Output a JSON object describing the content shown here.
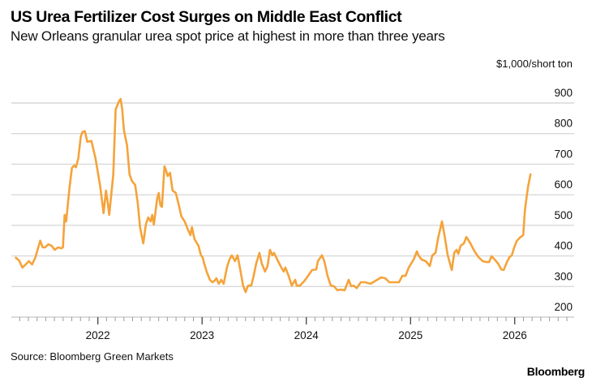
{
  "header": {
    "title": "US Urea Fertilizer Cost Surges on Middle East Conflict",
    "subtitle": "New Orleans granular urea spot price at highest in more than three years",
    "unit": "$1,000/short ton"
  },
  "footer": {
    "source": "Source: Bloomberg Green Markets",
    "brand": "Bloomberg"
  },
  "colors": {
    "line": "#f5a33a",
    "grid": "#d9d9d9"
  },
  "chart_data": {
    "type": "line",
    "title": "US Urea Fertilizer Cost Surges on Middle East Conflict",
    "subtitle": "New Orleans granular urea spot price at highest in more than three years",
    "xlabel": "",
    "ylabel": "$1,000/short ton",
    "y_axis_side": "right",
    "ylim": [
      200,
      900
    ],
    "xlim": [
      2021.17,
      2026.57
    ],
    "yticks": [
      200,
      300,
      400,
      500,
      600,
      700,
      800,
      900
    ],
    "xticks": [
      {
        "value": 2022,
        "label": "2022"
      },
      {
        "value": 2023,
        "label": "2023"
      },
      {
        "value": 2024,
        "label": "2024"
      },
      {
        "value": 2025,
        "label": "2025"
      },
      {
        "value": 2026,
        "label": "2026"
      }
    ],
    "minor_ticks": "monthly",
    "grid": true,
    "legend": "none",
    "series": [
      {
        "name": "New Orleans granular urea spot price",
        "x": [
          2021.213,
          2021.245,
          2021.276,
          2021.307,
          2021.338,
          2021.369,
          2021.4,
          2021.447,
          2021.47,
          2021.494,
          2021.525,
          2021.556,
          2021.587,
          2021.618,
          2021.65,
          2021.665,
          2021.681,
          2021.696,
          2021.727,
          2021.751,
          2021.774,
          2021.79,
          2021.813,
          2021.836,
          2021.852,
          2021.875,
          2021.899,
          2021.938,
          2021.977,
          2022.023,
          2022.055,
          2022.078,
          2022.093,
          2022.109,
          2022.148,
          2022.171,
          2022.202,
          2022.218,
          2022.234,
          2022.249,
          2022.28,
          2022.304,
          2022.327,
          2022.358,
          2022.382,
          2022.405,
          2022.436,
          2022.46,
          2022.483,
          2022.506,
          2022.522,
          2022.537,
          2022.569,
          2022.584,
          2022.6,
          2022.615,
          2022.639,
          2022.654,
          2022.67,
          2022.693,
          2022.717,
          2022.748,
          2022.771,
          2022.802,
          2022.833,
          2022.864,
          2022.888,
          2022.903,
          2022.927,
          2022.966,
          2022.989,
          2023.005,
          2023.02,
          2023.044,
          2023.075,
          2023.098,
          2023.121,
          2023.137,
          2023.16,
          2023.184,
          2023.207,
          2023.238,
          2023.262,
          2023.285,
          2023.316,
          2023.34,
          2023.363,
          2023.394,
          2023.417,
          2023.441,
          2023.472,
          2023.495,
          2023.519,
          2023.55,
          2023.573,
          2023.604,
          2023.628,
          2023.651,
          2023.674,
          2023.69,
          2023.729,
          2023.76,
          2023.783,
          2023.799,
          2023.83,
          2023.861,
          2023.893,
          2023.908,
          2023.939,
          2023.978,
          2024.017,
          2024.056,
          2024.095,
          2024.111,
          2024.15,
          2024.173,
          2024.204,
          2024.235,
          2024.266,
          2024.298,
          2024.329,
          2024.368,
          2024.407,
          2024.43,
          2024.453,
          2024.484,
          2024.523,
          2024.562,
          2024.617,
          2024.656,
          2024.718,
          2024.757,
          2024.796,
          2024.85,
          2024.889,
          2024.921,
          2024.952,
          2024.983,
          2025.006,
          2025.03,
          2025.061,
          2025.076,
          2025.107,
          2025.146,
          2025.185,
          2025.209,
          2025.24,
          2025.263,
          2025.302,
          2025.326,
          2025.357,
          2025.396,
          2025.419,
          2025.442,
          2025.458,
          2025.481,
          2025.512,
          2025.536,
          2025.575,
          2025.614,
          2025.653,
          2025.692,
          2025.731,
          2025.754,
          2025.777,
          2025.808,
          2025.84,
          2025.871,
          2025.894,
          2025.925,
          2025.949,
          2025.972,
          2025.995,
          2026.019,
          2026.05,
          2026.081,
          2026.097,
          2026.112,
          2026.128,
          2026.151
        ],
        "values": [
          394,
          385,
          362,
          372,
          383,
          372,
          395,
          450,
          428,
          428,
          438,
          433,
          420,
          428,
          425,
          428,
          534,
          513,
          620,
          688,
          696,
          690,
          720,
          790,
          805,
          808,
          773,
          776,
          720,
          627,
          540,
          614,
          580,
          534,
          667,
          879,
          905,
          913,
          880,
          813,
          760,
          667,
          645,
          632,
          574,
          494,
          441,
          502,
          526,
          513,
          534,
          502,
          587,
          606,
          566,
          560,
          693,
          680,
          661,
          672,
          614,
          606,
          574,
          529,
          513,
          486,
          468,
          494,
          455,
          433,
          402,
          396,
          375,
          349,
          322,
          314,
          319,
          327,
          309,
          322,
          309,
          362,
          388,
          402,
          383,
          402,
          362,
          303,
          282,
          303,
          303,
          335,
          375,
          410,
          375,
          349,
          367,
          420,
          402,
          410,
          383,
          362,
          349,
          362,
          335,
          303,
          322,
          303,
          303,
          317,
          335,
          354,
          356,
          383,
          402,
          383,
          335,
          303,
          301,
          288,
          290,
          288,
          322,
          301,
          303,
          295,
          314,
          314,
          309,
          317,
          330,
          327,
          314,
          314,
          314,
          335,
          335,
          362,
          375,
          388,
          415,
          402,
          388,
          383,
          367,
          402,
          410,
          455,
          513,
          468,
          402,
          354,
          410,
          420,
          407,
          433,
          441,
          462,
          441,
          415,
          396,
          383,
          380,
          380,
          399,
          388,
          375,
          356,
          354,
          380,
          396,
          402,
          428,
          449,
          460,
          468,
          547,
          587,
          627,
          667
        ]
      }
    ]
  }
}
